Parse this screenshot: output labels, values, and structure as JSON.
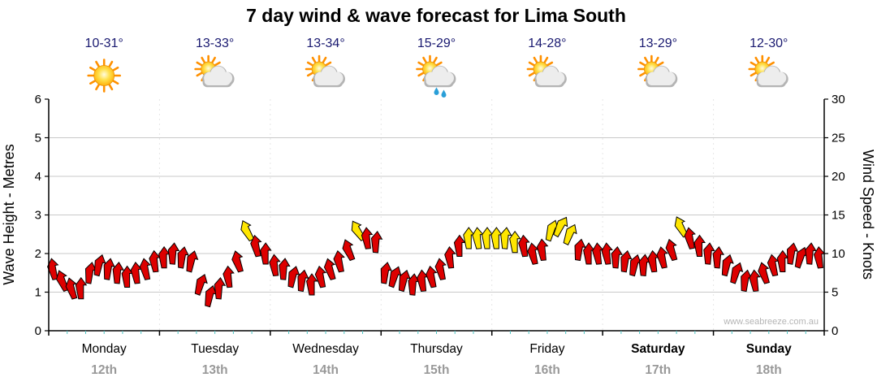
{
  "title": "7 day wind & wave forecast for Lima South",
  "watermark": "www.seabreeze.com.au",
  "axes": {
    "left_label": "Wave Height - Metres",
    "right_label": "Wind Speed - Knots",
    "left_ticks": [
      0,
      1,
      2,
      3,
      4,
      5,
      6
    ],
    "right_ticks": [
      0,
      5,
      10,
      15,
      20,
      25,
      30
    ]
  },
  "days": [
    {
      "name": "Monday",
      "date": "12th",
      "temp": "10-31°",
      "icon": "sunny",
      "bold": false
    },
    {
      "name": "Tuesday",
      "date": "13th",
      "temp": "13-33°",
      "icon": "partly-cloudy",
      "bold": false
    },
    {
      "name": "Wednesday",
      "date": "14th",
      "temp": "13-34°",
      "icon": "partly-cloudy",
      "bold": false
    },
    {
      "name": "Thursday",
      "date": "15th",
      "temp": "15-29°",
      "icon": "rain-shower",
      "bold": false
    },
    {
      "name": "Friday",
      "date": "16th",
      "temp": "14-28°",
      "icon": "partly-cloudy",
      "bold": false
    },
    {
      "name": "Saturday",
      "date": "17th",
      "temp": "13-29°",
      "icon": "partly-cloudy",
      "bold": true
    },
    {
      "name": "Sunday",
      "date": "18th",
      "temp": "12-30°",
      "icon": "partly-cloudy",
      "bold": true
    }
  ],
  "colors": {
    "arrow_red": "#dd0000",
    "arrow_yellow": "#ffe600",
    "arrow_outline": "#000000",
    "temp": "#191970",
    "date": "#999999",
    "grid": "#c9c9c9",
    "day_grid": "#e6e6e6",
    "axis": "#000000",
    "minor_tick": "#4fc3c3",
    "watermark": "#b5b5b5",
    "sun_ray": "#ff9000",
    "cloud": "#ededed",
    "rain": "#2a9fd8"
  },
  "chart_data": {
    "type": "scatter",
    "subtype": "wind-arrow-time-series",
    "title": "7 day wind & wave forecast for Lima South",
    "x_categories": [
      "Monday 12th",
      "Tuesday 13th",
      "Wednesday 14th",
      "Thursday 15th",
      "Friday 16th",
      "Saturday 17th",
      "Sunday 18th"
    ],
    "points_per_day": 12,
    "y_left_label": "Wave Height - Metres",
    "y_left_lim": [
      0,
      6
    ],
    "y_right_label": "Wind Speed - Knots",
    "y_right_lim": [
      0,
      30
    ],
    "grid": true,
    "legend": false,
    "point_fields": [
      "wind_speed_knots",
      "direction_deg",
      "color"
    ],
    "points": [
      [
        8,
        -10,
        "red"
      ],
      [
        6.5,
        -20,
        "red"
      ],
      [
        5.5,
        -15,
        "red"
      ],
      [
        5.5,
        0,
        "red"
      ],
      [
        7.5,
        10,
        "red"
      ],
      [
        8.5,
        15,
        "red"
      ],
      [
        8,
        10,
        "red"
      ],
      [
        7.5,
        5,
        "red"
      ],
      [
        7,
        0,
        "red"
      ],
      [
        7.5,
        -5,
        "red"
      ],
      [
        8,
        -10,
        "red"
      ],
      [
        9,
        -5,
        "red"
      ],
      [
        9.5,
        0,
        "red"
      ],
      [
        10,
        5,
        "red"
      ],
      [
        9.5,
        10,
        "red"
      ],
      [
        9,
        15,
        "red"
      ],
      [
        6,
        20,
        "red"
      ],
      [
        4.5,
        15,
        "red"
      ],
      [
        5.5,
        5,
        "red"
      ],
      [
        7,
        -5,
        "red"
      ],
      [
        9,
        -15,
        "red"
      ],
      [
        13,
        -25,
        "yellow"
      ],
      [
        11,
        -10,
        "red"
      ],
      [
        10,
        0,
        "red"
      ],
      [
        8.5,
        -5,
        "red"
      ],
      [
        8,
        5,
        "red"
      ],
      [
        7,
        15,
        "red"
      ],
      [
        6.5,
        10,
        "red"
      ],
      [
        6,
        0,
        "red"
      ],
      [
        7,
        -10,
        "red"
      ],
      [
        8,
        -15,
        "red"
      ],
      [
        9,
        -10,
        "red"
      ],
      [
        10.5,
        -20,
        "red"
      ],
      [
        13,
        -30,
        "yellow"
      ],
      [
        12,
        -5,
        "red"
      ],
      [
        11.5,
        5,
        "red"
      ],
      [
        7.5,
        10,
        "red"
      ],
      [
        7,
        20,
        "red"
      ],
      [
        6.5,
        15,
        "red"
      ],
      [
        6,
        5,
        "red"
      ],
      [
        6.5,
        -5,
        "red"
      ],
      [
        7,
        -10,
        "red"
      ],
      [
        8,
        -10,
        "red"
      ],
      [
        9.5,
        -5,
        "red"
      ],
      [
        11,
        0,
        "red"
      ],
      [
        12,
        0,
        "yellow"
      ],
      [
        12,
        -5,
        "yellow"
      ],
      [
        12,
        0,
        "yellow"
      ],
      [
        12,
        0,
        "yellow"
      ],
      [
        12,
        5,
        "yellow"
      ],
      [
        11.5,
        0,
        "yellow"
      ],
      [
        11,
        -5,
        "red"
      ],
      [
        10,
        -10,
        "red"
      ],
      [
        10.5,
        -5,
        "red"
      ],
      [
        13,
        20,
        "yellow"
      ],
      [
        13.5,
        30,
        "yellow"
      ],
      [
        12.5,
        25,
        "yellow"
      ],
      [
        10.5,
        10,
        "red"
      ],
      [
        10,
        0,
        "red"
      ],
      [
        10,
        -5,
        "red"
      ],
      [
        10,
        -5,
        "red"
      ],
      [
        9.5,
        5,
        "red"
      ],
      [
        9,
        10,
        "red"
      ],
      [
        8.5,
        15,
        "red"
      ],
      [
        8.5,
        5,
        "red"
      ],
      [
        9,
        -5,
        "red"
      ],
      [
        9.5,
        -10,
        "red"
      ],
      [
        10.5,
        -15,
        "red"
      ],
      [
        13.5,
        -25,
        "yellow"
      ],
      [
        12,
        -10,
        "red"
      ],
      [
        11,
        0,
        "red"
      ],
      [
        10,
        5,
        "red"
      ],
      [
        9.5,
        5,
        "red"
      ],
      [
        8.5,
        15,
        "red"
      ],
      [
        7.5,
        20,
        "red"
      ],
      [
        6.5,
        10,
        "red"
      ],
      [
        6.5,
        -5,
        "red"
      ],
      [
        7.5,
        -15,
        "red"
      ],
      [
        8.5,
        -10,
        "red"
      ],
      [
        9,
        0,
        "red"
      ],
      [
        10,
        10,
        "red"
      ],
      [
        9.5,
        20,
        "red"
      ],
      [
        10,
        5,
        "red"
      ],
      [
        9.5,
        -5,
        "red"
      ]
    ]
  }
}
